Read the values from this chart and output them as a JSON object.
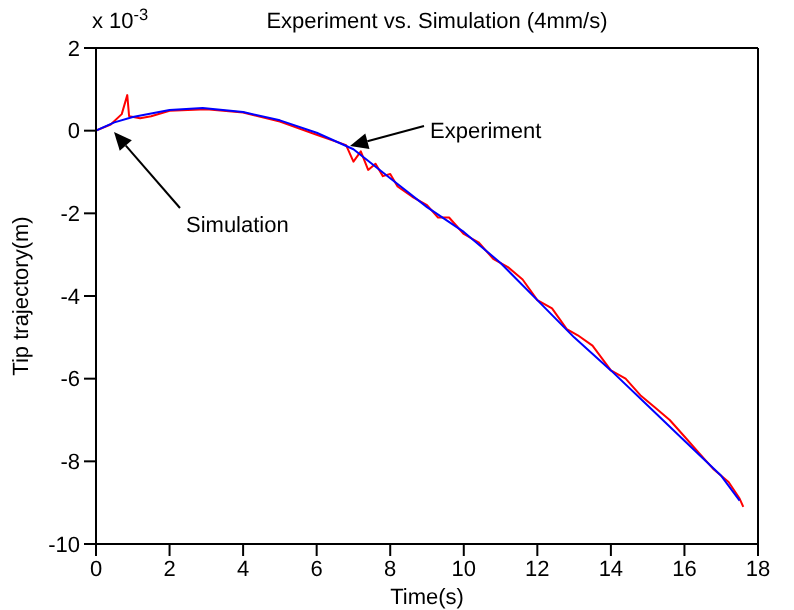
{
  "chart_data": {
    "type": "line",
    "title": "Experiment vs. Simulation (4mm/s)",
    "xlabel": "Time(s)",
    "ylabel": "Tip trajectory(m)",
    "xlim": [
      0,
      18
    ],
    "xticks": [
      0,
      2,
      4,
      6,
      8,
      10,
      12,
      14,
      16,
      18
    ],
    "ylim": [
      -10,
      2
    ],
    "yticks": [
      -10,
      -8,
      -6,
      -4,
      -2,
      0,
      2
    ],
    "grid": false,
    "legend": false,
    "marker": "none",
    "line_style": "solid",
    "annotations": [
      "x 10$^{-3}$",
      "Experiment",
      "Simulation"
    ],
    "series": [
      {
        "color": "#ff0000",
        "x": [
          0,
          0.4,
          0.7,
          0.85,
          0.9,
          1.2,
          1.5,
          2,
          3,
          4,
          5,
          6,
          6.8,
          7,
          7.2,
          7.4,
          7.6,
          7.8,
          8,
          8.2,
          8.6,
          9,
          9.3,
          9.6,
          10,
          10.4,
          10.8,
          11.2,
          11.6,
          12,
          12.4,
          12.8,
          13.1,
          13.5,
          14,
          14.4,
          14.8,
          15.2,
          15.6,
          16,
          16.4,
          16.8,
          17.2,
          17.5,
          17.6
        ],
        "values": [
          0,
          0.15,
          0.4,
          0.86,
          0.35,
          0.3,
          0.35,
          0.48,
          0.52,
          0.44,
          0.22,
          -0.1,
          -0.35,
          -0.75,
          -0.5,
          -0.95,
          -0.8,
          -1.1,
          -1.05,
          -1.35,
          -1.6,
          -1.8,
          -2.1,
          -2.1,
          -2.5,
          -2.7,
          -3.1,
          -3.3,
          -3.6,
          -4.1,
          -4.3,
          -4.8,
          -4.95,
          -5.2,
          -5.8,
          -6,
          -6.4,
          -6.7,
          -7,
          -7.4,
          -7.8,
          -8.2,
          -8.5,
          -8.9,
          -9.1
        ]
      },
      {
        "color": "#0000ff",
        "x": [
          0,
          0.5,
          1,
          2,
          2.9,
          4,
          5,
          6,
          7,
          8,
          9,
          10,
          11,
          12,
          13,
          14,
          15,
          16,
          17,
          17.5
        ],
        "values": [
          0,
          0.2,
          0.33,
          0.5,
          0.55,
          0.45,
          0.25,
          -0.05,
          -0.45,
          -1.15,
          -1.85,
          -2.45,
          -3.2,
          -4.1,
          -5,
          -5.8,
          -6.65,
          -7.5,
          -8.35,
          -8.95
        ]
      }
    ]
  }
}
